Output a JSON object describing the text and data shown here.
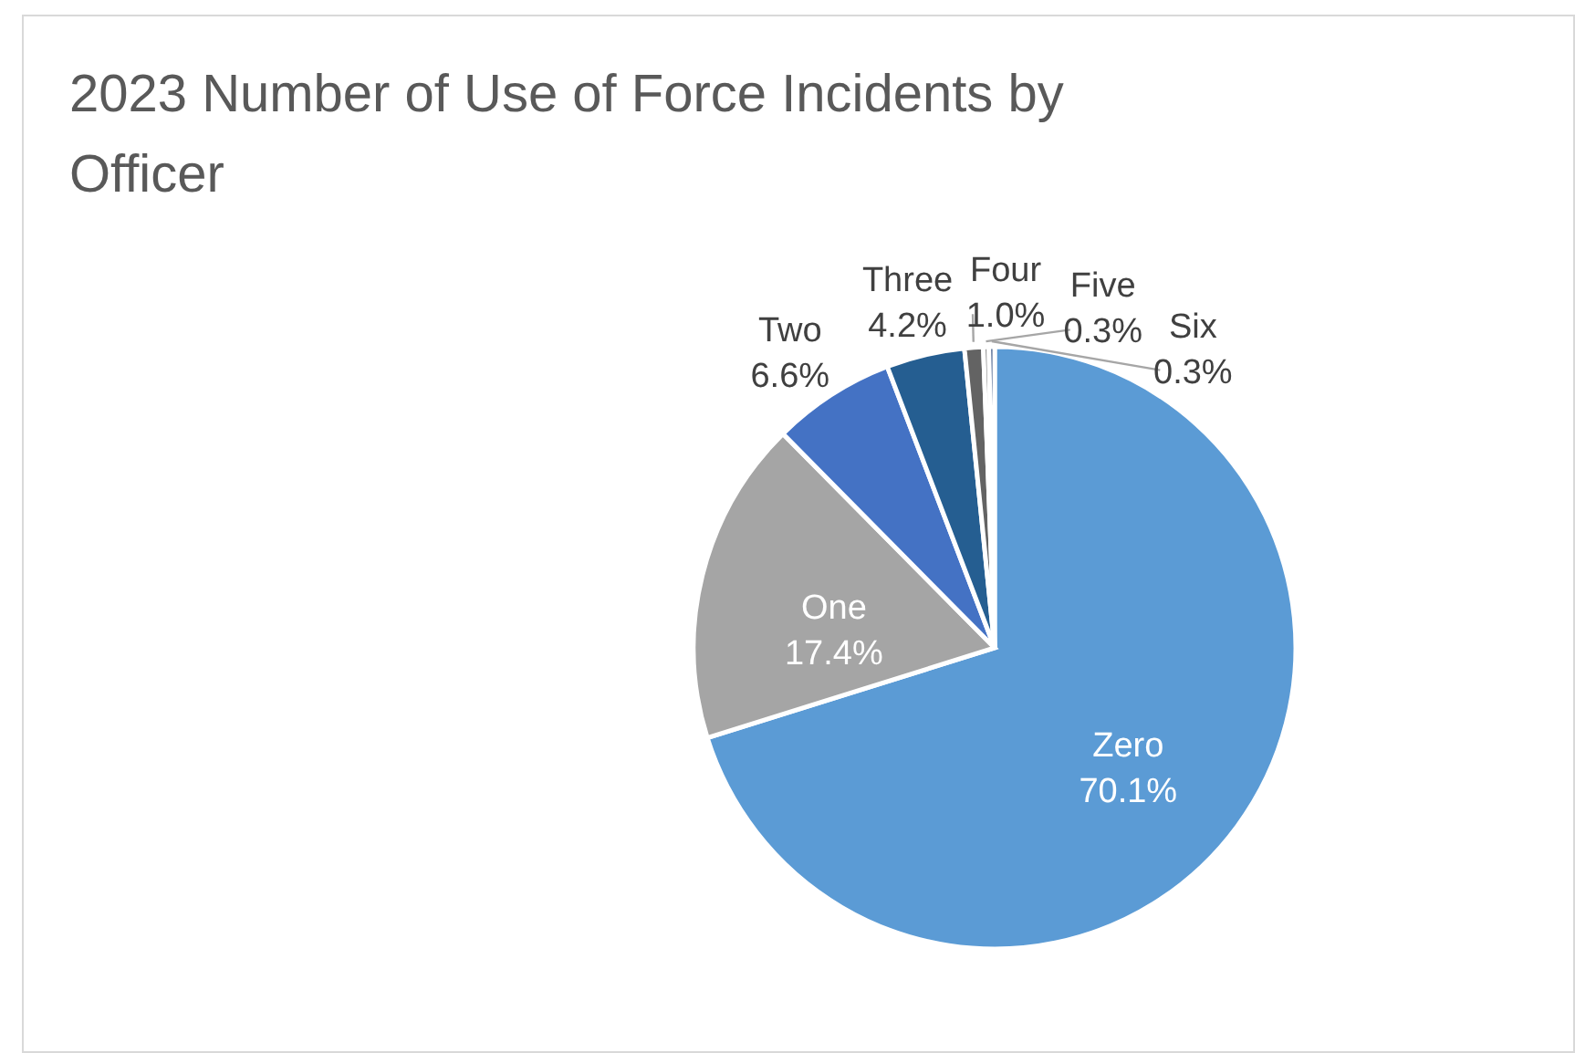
{
  "chart_data": {
    "type": "pie",
    "title": "2023 Number of Use of Force Incidents by Officer",
    "categories": [
      "Zero",
      "One",
      "Two",
      "Three",
      "Four",
      "Five",
      "Six"
    ],
    "values": [
      70.1,
      17.4,
      6.6,
      4.2,
      1.0,
      0.3,
      0.3
    ],
    "value_labels": [
      "70.1%",
      "17.4%",
      "6.6%",
      "4.2%",
      "1.0%",
      "0.3%",
      "0.3%"
    ],
    "colors": [
      "#5b9bd5",
      "#a5a5a5",
      "#4472c4",
      "#255e91",
      "#636363",
      "#7f7f7f",
      "#264478"
    ]
  }
}
